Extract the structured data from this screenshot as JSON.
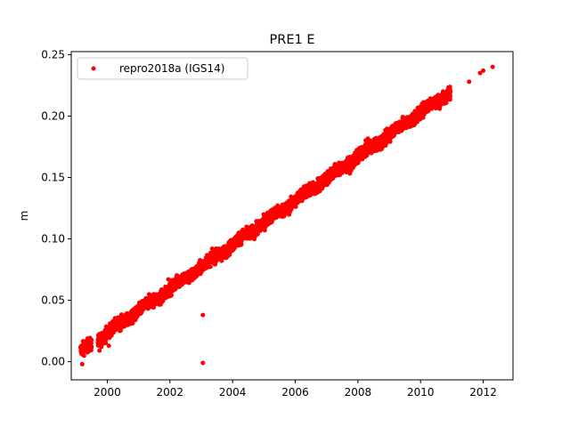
{
  "chart_data": {
    "type": "scatter",
    "title": "PRE1 E",
    "xlabel": "",
    "ylabel": "m",
    "xlim": [
      1998.85,
      2012.95
    ],
    "ylim": [
      -0.0148,
      0.2525
    ],
    "xticks": [
      2000,
      2002,
      2004,
      2006,
      2008,
      2010,
      2012
    ],
    "xtick_labels": [
      "2000",
      "2002",
      "2004",
      "2006",
      "2008",
      "2010",
      "2012"
    ],
    "yticks": [
      0.0,
      0.05,
      0.1,
      0.15,
      0.2,
      0.25
    ],
    "ytick_labels": [
      "0.00",
      "0.05",
      "0.10",
      "0.15",
      "0.20",
      "0.25"
    ],
    "grid": false,
    "legend": {
      "position": "top-left"
    },
    "series": [
      {
        "name": "repro2018a (IGS14)",
        "color": "#ff0000",
        "marker": "circle",
        "trend": {
          "x_start": 1999.15,
          "y_start": 0.008,
          "x_end": 2010.95,
          "y_end": 0.22,
          "noise_m": 0.0025
        },
        "gaps": [
          [
            1999.5,
            1999.7
          ]
        ],
        "outliers": [
          {
            "x": 1999.2,
            "y": -0.002
          },
          {
            "x": 1999.25,
            "y": 0.013
          },
          {
            "x": 1999.75,
            "y": 0.009
          },
          {
            "x": 2000.05,
            "y": 0.013
          },
          {
            "x": 2001.95,
            "y": 0.067
          },
          {
            "x": 2002.55,
            "y": 0.071
          },
          {
            "x": 2003.05,
            "y": 0.038
          },
          {
            "x": 2003.05,
            "y": -0.001
          },
          {
            "x": 2011.55,
            "y": 0.228
          },
          {
            "x": 2011.9,
            "y": 0.235
          },
          {
            "x": 2012.0,
            "y": 0.237
          },
          {
            "x": 2012.3,
            "y": 0.24
          }
        ]
      }
    ]
  }
}
